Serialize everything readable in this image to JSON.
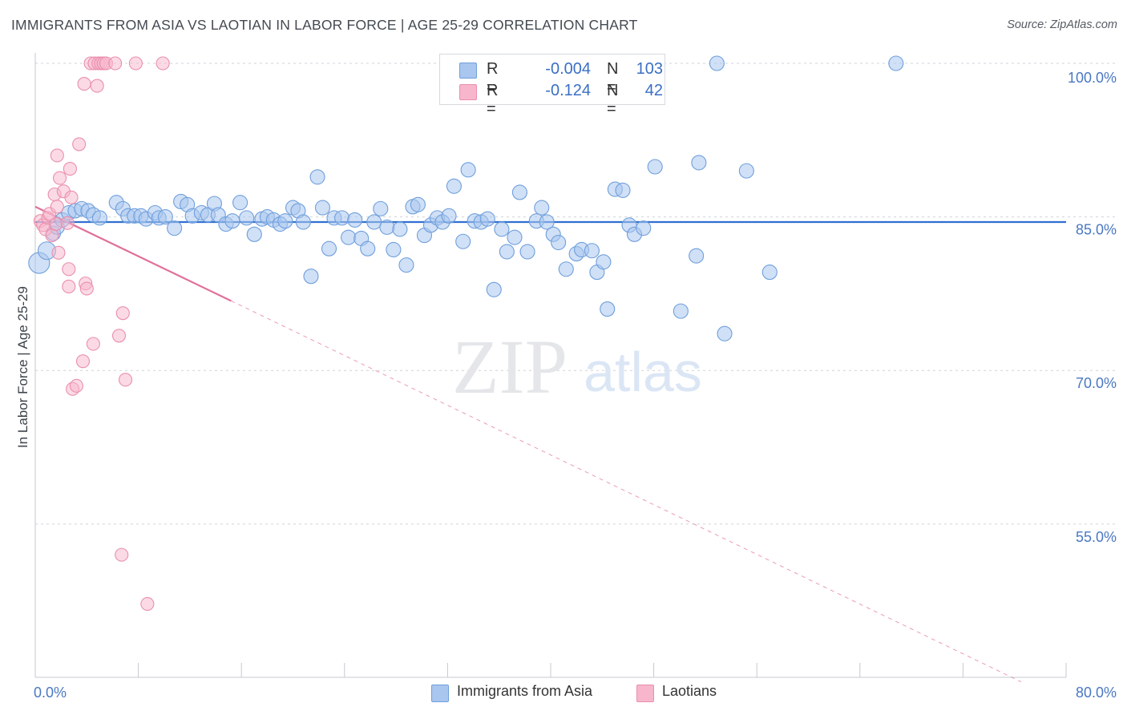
{
  "title": "IMMIGRANTS FROM ASIA VS LAOTIAN IN LABOR FORCE | AGE 25-29 CORRELATION CHART",
  "source": "Source: ZipAtlas.com",
  "watermark": {
    "zip": "ZIP",
    "atlas": "atlas"
  },
  "colors": {
    "blue_fill": "#a9c6ee",
    "blue_stroke": "#6f9fdc",
    "blue_line": "#2f6fd0",
    "pink_fill": "#f7b6cb",
    "pink_stroke": "#ea8fac",
    "pink_line": "#e0709a",
    "grid": "#cfd3d8",
    "tick_text": "#4a78c2"
  },
  "legend": {
    "rows": [
      {
        "r_label": "R =",
        "r_value": "-0.004",
        "n_label": "N =",
        "n_value": "103",
        "color": "#a9c6ee",
        "border": "#6f9fdc"
      },
      {
        "r_label": "R =",
        "r_value": "-0.124",
        "n_label": "N =",
        "n_value": "42",
        "color": "#f7b6cb",
        "border": "#ea8fac"
      }
    ]
  },
  "bottom_legend": [
    {
      "label": "Immigrants from Asia",
      "color": "#a9c6ee",
      "border": "#6f9fdc"
    },
    {
      "label": "Laotians",
      "color": "#f7b6cb",
      "border": "#ea8fac"
    }
  ],
  "chart_data": {
    "type": "scatter",
    "title": "IMMIGRANTS FROM ASIA VS LAOTIAN IN LABOR FORCE | AGE 25-29 CORRELATION CHART",
    "xlabel": "",
    "ylabel": "In Labor Force | Age 25-29",
    "xlim": [
      0,
      80
    ],
    "ylim": [
      40,
      102
    ],
    "x_tick_labels": [
      {
        "value": 0,
        "label": "0.0%"
      },
      {
        "value": 80,
        "label": "80.0%"
      }
    ],
    "y_tick_labels": [
      {
        "value": 100,
        "label": "100.0%"
      },
      {
        "value": 85,
        "label": "85.0%"
      },
      {
        "value": 70,
        "label": "70.0%"
      },
      {
        "value": 55,
        "label": "55.0%"
      }
    ],
    "series": [
      {
        "name": "Immigrants from Asia",
        "trend": {
          "x": [
            0,
            80
          ],
          "y": [
            84.5,
            84.5
          ]
        },
        "points": [
          [
            0.3,
            80.5
          ],
          [
            0.9,
            81.7
          ],
          [
            1.4,
            83.4
          ],
          [
            1.7,
            84.0
          ],
          [
            2.1,
            84.7
          ],
          [
            2.6,
            85.4
          ],
          [
            3.1,
            85.6
          ],
          [
            3.6,
            85.8
          ],
          [
            4.1,
            85.6
          ],
          [
            4.5,
            85.2
          ],
          [
            5.0,
            84.9
          ],
          [
            6.3,
            86.4
          ],
          [
            6.8,
            85.8
          ],
          [
            7.2,
            85.1
          ],
          [
            7.7,
            85.1
          ],
          [
            8.2,
            85.1
          ],
          [
            8.6,
            84.8
          ],
          [
            9.3,
            85.4
          ],
          [
            9.6,
            84.9
          ],
          [
            10.1,
            85.0
          ],
          [
            10.8,
            83.9
          ],
          [
            11.3,
            86.5
          ],
          [
            11.8,
            86.2
          ],
          [
            12.2,
            85.1
          ],
          [
            12.9,
            85.4
          ],
          [
            13.4,
            85.2
          ],
          [
            13.9,
            86.3
          ],
          [
            14.2,
            85.2
          ],
          [
            14.8,
            84.3
          ],
          [
            15.3,
            84.6
          ],
          [
            15.9,
            86.4
          ],
          [
            16.4,
            84.9
          ],
          [
            17.0,
            83.3
          ],
          [
            17.6,
            84.8
          ],
          [
            18.0,
            85.0
          ],
          [
            18.5,
            84.7
          ],
          [
            19.0,
            84.3
          ],
          [
            19.4,
            84.6
          ],
          [
            20.0,
            85.9
          ],
          [
            20.4,
            85.6
          ],
          [
            20.8,
            84.5
          ],
          [
            21.4,
            79.2
          ],
          [
            21.9,
            88.9
          ],
          [
            22.3,
            85.9
          ],
          [
            22.8,
            81.9
          ],
          [
            23.2,
            84.9
          ],
          [
            23.8,
            84.9
          ],
          [
            24.3,
            83.0
          ],
          [
            24.8,
            84.7
          ],
          [
            25.3,
            82.9
          ],
          [
            25.8,
            81.9
          ],
          [
            26.3,
            84.5
          ],
          [
            26.8,
            85.8
          ],
          [
            27.3,
            84.0
          ],
          [
            27.8,
            81.8
          ],
          [
            28.3,
            83.8
          ],
          [
            28.8,
            80.3
          ],
          [
            29.3,
            86.0
          ],
          [
            29.7,
            86.2
          ],
          [
            30.2,
            83.2
          ],
          [
            30.7,
            84.2
          ],
          [
            31.2,
            84.9
          ],
          [
            31.6,
            84.5
          ],
          [
            32.1,
            85.1
          ],
          [
            32.5,
            88.0
          ],
          [
            33.2,
            82.6
          ],
          [
            33.6,
            89.6
          ],
          [
            34.1,
            84.6
          ],
          [
            34.6,
            84.5
          ],
          [
            35.1,
            84.8
          ],
          [
            35.6,
            77.9
          ],
          [
            36.2,
            83.8
          ],
          [
            36.6,
            81.6
          ],
          [
            37.2,
            83.0
          ],
          [
            37.6,
            87.4
          ],
          [
            38.2,
            81.6
          ],
          [
            38.9,
            84.6
          ],
          [
            39.3,
            85.9
          ],
          [
            39.7,
            84.5
          ],
          [
            40.2,
            83.3
          ],
          [
            40.6,
            82.5
          ],
          [
            41.2,
            79.9
          ],
          [
            42.0,
            81.4
          ],
          [
            42.4,
            81.8
          ],
          [
            43.2,
            81.7
          ],
          [
            43.6,
            79.6
          ],
          [
            44.1,
            80.6
          ],
          [
            44.4,
            76.0
          ],
          [
            45.0,
            87.7
          ],
          [
            45.6,
            87.6
          ],
          [
            46.1,
            84.2
          ],
          [
            46.5,
            83.3
          ],
          [
            47.2,
            83.9
          ],
          [
            48.1,
            89.9
          ],
          [
            50.1,
            75.8
          ],
          [
            51.3,
            81.2
          ],
          [
            51.5,
            90.3
          ],
          [
            52.9,
            100.0
          ],
          [
            53.5,
            73.6
          ],
          [
            55.2,
            89.5
          ],
          [
            57.0,
            79.6
          ],
          [
            66.8,
            100.0
          ]
        ]
      },
      {
        "name": "Laotians",
        "trend": {
          "x": [
            0,
            15.2
          ],
          "y": [
            86.0,
            76.8
          ]
        },
        "trend_dashed": {
          "x": [
            15.2,
            76.5
          ],
          "y": [
            76.8,
            39.6
          ]
        },
        "points": [
          [
            0.4,
            84.6
          ],
          [
            0.6,
            84.2
          ],
          [
            0.8,
            83.8
          ],
          [
            1.0,
            84.9
          ],
          [
            1.3,
            83.2
          ],
          [
            1.6,
            84.3
          ],
          [
            1.1,
            85.3
          ],
          [
            1.5,
            87.2
          ],
          [
            1.7,
            86.0
          ],
          [
            1.8,
            81.5
          ],
          [
            1.7,
            91.0
          ],
          [
            1.9,
            88.8
          ],
          [
            2.2,
            87.5
          ],
          [
            2.5,
            84.4
          ],
          [
            2.6,
            79.9
          ],
          [
            2.6,
            78.2
          ],
          [
            2.7,
            89.7
          ],
          [
            2.8,
            86.9
          ],
          [
            2.9,
            68.2
          ],
          [
            3.2,
            68.5
          ],
          [
            3.4,
            92.1
          ],
          [
            3.7,
            70.9
          ],
          [
            3.8,
            98.0
          ],
          [
            3.9,
            78.5
          ],
          [
            4.0,
            78.0
          ],
          [
            4.3,
            100.0
          ],
          [
            4.6,
            100.0
          ],
          [
            4.5,
            72.6
          ],
          [
            4.8,
            97.8
          ],
          [
            4.9,
            100.0
          ],
          [
            5.1,
            100.0
          ],
          [
            5.3,
            100.0
          ],
          [
            5.5,
            100.0
          ],
          [
            6.2,
            100.0
          ],
          [
            6.5,
            73.4
          ],
          [
            6.8,
            75.6
          ],
          [
            6.7,
            52.0
          ],
          [
            7.0,
            69.1
          ],
          [
            7.8,
            100.0
          ],
          [
            8.7,
            47.2
          ],
          [
            9.9,
            100.0
          ]
        ]
      }
    ]
  }
}
